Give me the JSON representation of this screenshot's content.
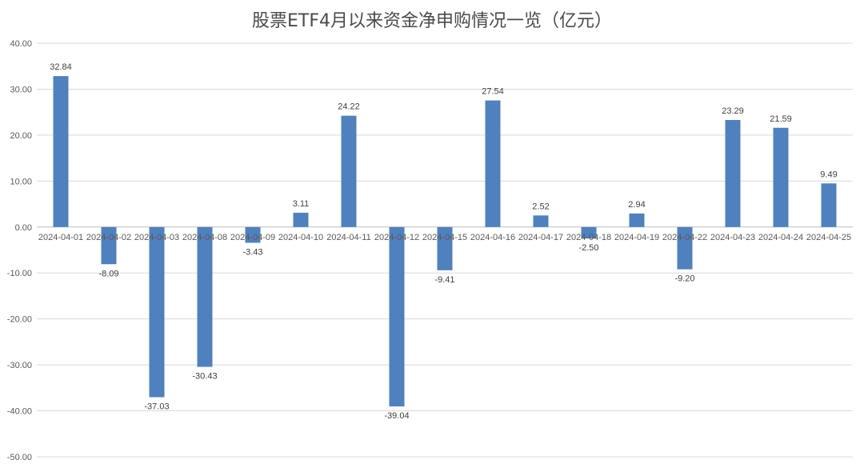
{
  "chart_data": {
    "type": "bar",
    "title": "股票ETF4月以来资金净申购情况一览（亿元）",
    "categories": [
      "2024-04-01",
      "2024-04-02",
      "2024-04-03",
      "2024-04-08",
      "2024-04-09",
      "2024-04-10",
      "2024-04-11",
      "2024-04-12",
      "2024-04-15",
      "2024-04-16",
      "2024-04-17",
      "2024-04-18",
      "2024-04-19",
      "2024-04-22",
      "2024-04-23",
      "2024-04-24",
      "2024-04-25"
    ],
    "values": [
      32.84,
      -8.09,
      -37.03,
      -30.43,
      -3.43,
      3.11,
      24.22,
      -39.04,
      -9.41,
      27.54,
      2.52,
      -2.5,
      2.94,
      -9.2,
      23.29,
      21.59,
      9.49
    ],
    "value_labels": [
      "32.84",
      "-8.09",
      "-37.03",
      "-30.43",
      "-3.43",
      "3.11",
      "24.22",
      "-39.04",
      "-9.41",
      "27.54",
      "2.52",
      "-2.50",
      "2.94",
      "-9.20",
      "23.29",
      "21.59",
      "9.49"
    ],
    "ylim": [
      -50,
      40
    ],
    "yticks": [
      40,
      30,
      20,
      10,
      0,
      -10,
      -20,
      -30,
      -40,
      -50
    ],
    "ytick_labels": [
      "40.00",
      "30.00",
      "20.00",
      "10.00",
      "0.00",
      "-10.00",
      "-20.00",
      "-30.00",
      "-40.00",
      "-50.00"
    ],
    "xlabel": "",
    "ylabel": "",
    "grid": true,
    "legend": "none",
    "colors": {
      "bar": "#4f81bd",
      "grid": "#d9d9d9"
    }
  }
}
